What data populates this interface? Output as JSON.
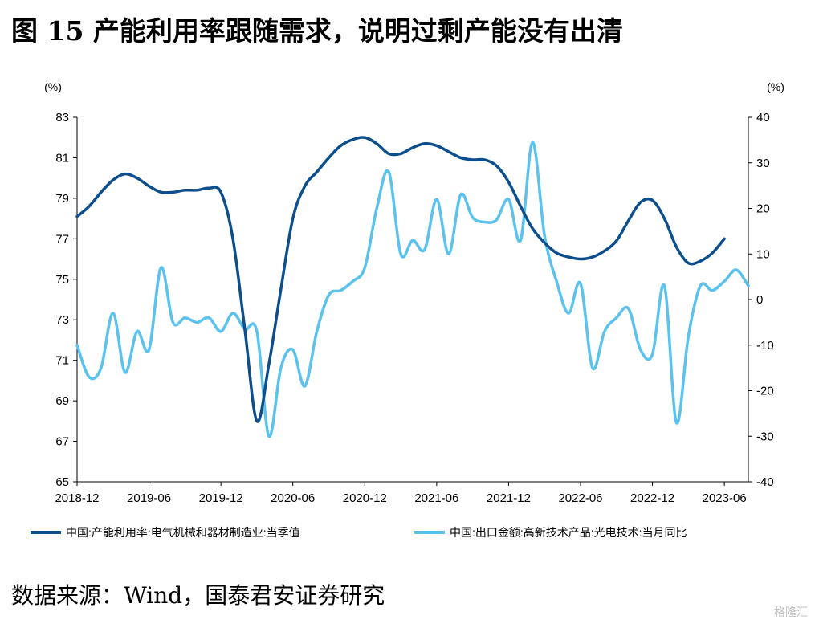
{
  "title": "图 15 产能利用率跟随需求，说明过剩产能没有出清",
  "source": "数据来源：Wind，国泰君安证券研究",
  "watermark": "格隆汇",
  "colors": {
    "series1": "#0D4F8C",
    "series2": "#5BC2EE",
    "axis": "#000000"
  },
  "chart_data": {
    "type": "line",
    "left_unit": "(%)",
    "right_unit": "(%)",
    "left_axis": {
      "min": 65,
      "max": 83,
      "ticks": [
        "83",
        "81",
        "79",
        "77",
        "75",
        "73",
        "71",
        "69",
        "67",
        "65"
      ]
    },
    "right_axis": {
      "min": -40,
      "max": 40,
      "ticks": [
        "40",
        "30",
        "20",
        "10",
        "0",
        "-10",
        "-20",
        "-30",
        "-40"
      ]
    },
    "x_range": [
      "2018-12",
      "2023-08"
    ],
    "x_ticks": [
      "2018-12",
      "2019-06",
      "2019-12",
      "2020-06",
      "2020-12",
      "2021-06",
      "2021-12",
      "2022-06",
      "2022-12",
      "2023-06"
    ],
    "grid": false,
    "legend_position": "bottom",
    "series": [
      {
        "name": "中国:产能利用率:电气机械和器材制造业:当季值",
        "axis": "left",
        "points": [
          [
            "2018-12",
            78.1
          ],
          [
            "2019-01",
            78.6
          ],
          [
            "2019-02",
            79.3
          ],
          [
            "2019-03",
            79.9
          ],
          [
            "2019-04",
            80.2
          ],
          [
            "2019-05",
            80.0
          ],
          [
            "2019-06",
            79.6
          ],
          [
            "2019-07",
            79.3
          ],
          [
            "2019-08",
            79.3
          ],
          [
            "2019-09",
            79.4
          ],
          [
            "2019-10",
            79.4
          ],
          [
            "2019-11",
            79.5
          ],
          [
            "2019-12",
            79.3
          ],
          [
            "2020-01",
            77.0
          ],
          [
            "2020-02",
            72.5
          ],
          [
            "2020-03",
            68.0
          ],
          [
            "2020-04",
            70.8
          ],
          [
            "2020-05",
            74.5
          ],
          [
            "2020-06",
            78.0
          ],
          [
            "2020-07",
            79.6
          ],
          [
            "2020-08",
            80.3
          ],
          [
            "2020-09",
            81.0
          ],
          [
            "2020-10",
            81.6
          ],
          [
            "2020-11",
            81.9
          ],
          [
            "2020-12",
            82.0
          ],
          [
            "2021-01",
            81.7
          ],
          [
            "2021-02",
            81.2
          ],
          [
            "2021-03",
            81.2
          ],
          [
            "2021-04",
            81.5
          ],
          [
            "2021-05",
            81.7
          ],
          [
            "2021-06",
            81.6
          ],
          [
            "2021-07",
            81.3
          ],
          [
            "2021-08",
            81.0
          ],
          [
            "2021-09",
            80.9
          ],
          [
            "2021-10",
            80.9
          ],
          [
            "2021-11",
            80.6
          ],
          [
            "2021-12",
            79.8
          ],
          [
            "2022-01",
            78.6
          ],
          [
            "2022-02",
            77.5
          ],
          [
            "2022-03",
            76.8
          ],
          [
            "2022-04",
            76.3
          ],
          [
            "2022-05",
            76.1
          ],
          [
            "2022-06",
            76.0
          ],
          [
            "2022-07",
            76.1
          ],
          [
            "2022-08",
            76.4
          ],
          [
            "2022-09",
            76.9
          ],
          [
            "2022-10",
            77.9
          ],
          [
            "2022-11",
            78.8
          ],
          [
            "2022-12",
            78.9
          ],
          [
            "2023-01",
            78.0
          ],
          [
            "2023-02",
            76.6
          ],
          [
            "2023-03",
            75.8
          ],
          [
            "2023-04",
            75.9
          ],
          [
            "2023-05",
            76.3
          ],
          [
            "2023-06",
            77.0
          ]
        ]
      },
      {
        "name": "中国:出口金额:高新技术产品:光电技术:当月同比",
        "axis": "right",
        "points": [
          [
            "2018-12",
            -10.0
          ],
          [
            "2019-01",
            -17.0
          ],
          [
            "2019-02",
            -15.0
          ],
          [
            "2019-03",
            -3.0
          ],
          [
            "2019-04",
            -16.0
          ],
          [
            "2019-05",
            -7.0
          ],
          [
            "2019-06",
            -11.0
          ],
          [
            "2019-07",
            7.0
          ],
          [
            "2019-08",
            -5.0
          ],
          [
            "2019-09",
            -4.0
          ],
          [
            "2019-10",
            -5.0
          ],
          [
            "2019-11",
            -4.0
          ],
          [
            "2019-12",
            -7.0
          ],
          [
            "2020-01",
            -3.0
          ],
          [
            "2020-02",
            -6.5
          ],
          [
            "2020-03",
            -7.0
          ],
          [
            "2020-04",
            -30.0
          ],
          [
            "2020-05",
            -15.0
          ],
          [
            "2020-06",
            -11.0
          ],
          [
            "2020-07",
            -19.0
          ],
          [
            "2020-08",
            -7.0
          ],
          [
            "2020-09",
            1.0
          ],
          [
            "2020-10",
            2.0
          ],
          [
            "2020-11",
            4.0
          ],
          [
            "2020-12",
            7.0
          ],
          [
            "2021-01",
            20.0
          ],
          [
            "2021-02",
            28.0
          ],
          [
            "2021-03",
            10.0
          ],
          [
            "2021-04",
            13.0
          ],
          [
            "2021-05",
            11.0
          ],
          [
            "2021-06",
            22.0
          ],
          [
            "2021-07",
            10.0
          ],
          [
            "2021-08",
            23.0
          ],
          [
            "2021-09",
            18.0
          ],
          [
            "2021-10",
            17.0
          ],
          [
            "2021-11",
            17.5
          ],
          [
            "2021-12",
            22.0
          ],
          [
            "2022-01",
            13.0
          ],
          [
            "2022-02",
            34.5
          ],
          [
            "2022-03",
            14.0
          ],
          [
            "2022-04",
            4.0
          ],
          [
            "2022-05",
            -3.0
          ],
          [
            "2022-06",
            3.5
          ],
          [
            "2022-07",
            -15.0
          ],
          [
            "2022-08",
            -7.0
          ],
          [
            "2022-09",
            -4.0
          ],
          [
            "2022-10",
            -2.0
          ],
          [
            "2022-11",
            -11.0
          ],
          [
            "2022-12",
            -12.0
          ],
          [
            "2023-01",
            3.0
          ],
          [
            "2023-02",
            -27.0
          ],
          [
            "2023-03",
            -8.0
          ],
          [
            "2023-04",
            3.0
          ],
          [
            "2023-05",
            2.0
          ],
          [
            "2023-06",
            4.0
          ],
          [
            "2023-07",
            6.5
          ],
          [
            "2023-08",
            3.0
          ]
        ]
      }
    ]
  }
}
